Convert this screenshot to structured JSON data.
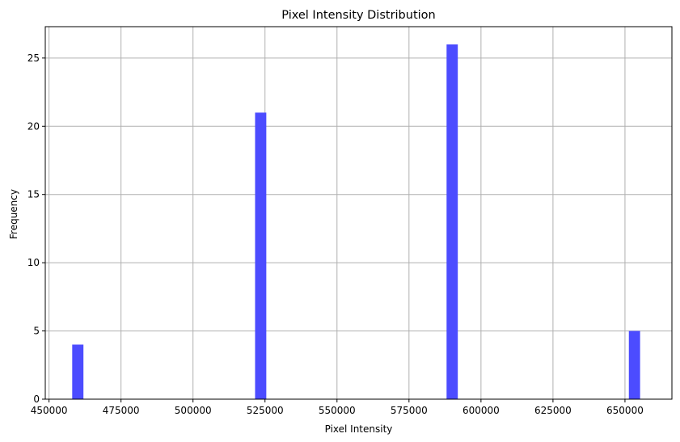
{
  "chart_data": {
    "type": "bar",
    "title": "Pixel Intensity Distribution",
    "xlabel": "Pixel Intensity",
    "ylabel": "Frequency",
    "xlim": [
      448700,
      666300
    ],
    "ylim": [
      0,
      27.3
    ],
    "xticks": [
      450000,
      475000,
      500000,
      525000,
      550000,
      575000,
      600000,
      625000,
      650000
    ],
    "yticks": [
      0,
      5,
      10,
      15,
      20,
      25
    ],
    "grid": true,
    "bar_color": "#4c4cff",
    "bin_width": 3900,
    "bins": [
      {
        "x": 460000,
        "count": 4
      },
      {
        "x": 523500,
        "count": 21
      },
      {
        "x": 590000,
        "count": 26
      },
      {
        "x": 653300,
        "count": 5
      }
    ]
  }
}
